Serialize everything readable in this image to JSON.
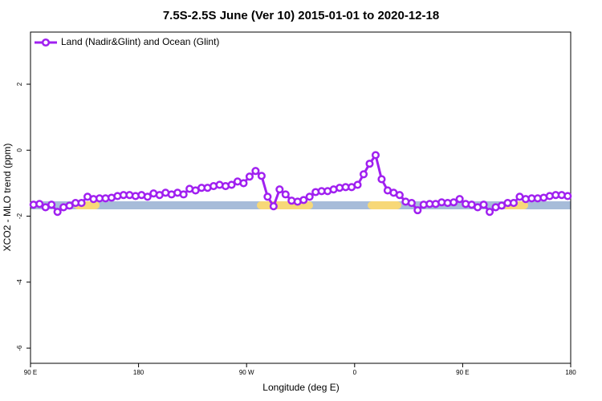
{
  "chart_data": {
    "type": "line",
    "title": "7.5S-2.5S June (Ver 10)   2015-01-01 to 2020-12-18",
    "xlabel": "Longitude (deg E)",
    "ylabel": "XCO2 - MLO trend (ppm)",
    "xlim": [
      90,
      540
    ],
    "ylim": [
      -6.46,
      3.58
    ],
    "xticks": [
      {
        "value": 90,
        "label": "90 E"
      },
      180,
      {
        "value": 270,
        "label": "90 W"
      },
      {
        "value": 360,
        "label": "0"
      },
      {
        "value": 450,
        "label": "90 E"
      },
      {
        "value": 540,
        "label": "180"
      }
    ],
    "yticks": [
      -6,
      -4,
      -2,
      0,
      2
    ],
    "legend": "top-left",
    "x": [
      92.5,
      97.5,
      102.5,
      107.5,
      112.5,
      117.5,
      122.5,
      127.5,
      132.5,
      137.5,
      142.5,
      147.5,
      152.5,
      157.5,
      162.5,
      167.5,
      172.5,
      177.5,
      182.5,
      187.5,
      192.5,
      197.5,
      202.5,
      207.5,
      212.5,
      217.5,
      222.5,
      227.5,
      232.5,
      237.5,
      242.5,
      247.5,
      252.5,
      257.5,
      262.5,
      267.5,
      272.5,
      277.5,
      282.5,
      287.5,
      292.5,
      297.5,
      302.5,
      307.5,
      312.5,
      317.5,
      322.5,
      327.5,
      332.5,
      337.5,
      342.5,
      347.5,
      352.5,
      357.5,
      362.5,
      367.5,
      372.5,
      377.5,
      382.5,
      387.5,
      392.5,
      397.5,
      402.5,
      407.5,
      412.5,
      417.5,
      422.5,
      427.5,
      432.5,
      437.5,
      442.5,
      447.5,
      452.5,
      457.5,
      462.5,
      467.5,
      472.5,
      477.5,
      482.5,
      487.5,
      492.5,
      497.5,
      502.5,
      507.5,
      512.5,
      517.5,
      522.5,
      527.5,
      532.5,
      537.5
    ],
    "series": [
      {
        "name": "Land (Nadir&Glint) and Ocean (Glint)",
        "color": "#a020f0",
        "values": [
          -1.65,
          -1.63,
          -1.73,
          -1.65,
          -1.87,
          -1.73,
          -1.68,
          -1.6,
          -1.6,
          -1.41,
          -1.48,
          -1.46,
          -1.46,
          -1.44,
          -1.39,
          -1.36,
          -1.36,
          -1.39,
          -1.36,
          -1.41,
          -1.31,
          -1.36,
          -1.29,
          -1.34,
          -1.29,
          -1.34,
          -1.17,
          -1.22,
          -1.14,
          -1.14,
          -1.09,
          -1.05,
          -1.09,
          -1.05,
          -0.95,
          -1.0,
          -0.8,
          -0.63,
          -0.78,
          -1.41,
          -1.7,
          -1.19,
          -1.34,
          -1.53,
          -1.56,
          -1.51,
          -1.41,
          -1.27,
          -1.24,
          -1.24,
          -1.19,
          -1.14,
          -1.12,
          -1.12,
          -1.05,
          -0.73,
          -0.41,
          -0.15,
          -0.88,
          -1.22,
          -1.29,
          -1.36,
          -1.56,
          -1.6,
          -1.82,
          -1.65,
          -1.63,
          -1.63,
          -1.58,
          -1.6,
          -1.58,
          -1.48,
          -1.63,
          -1.65,
          -1.73,
          -1.65,
          -1.87,
          -1.73,
          -1.68,
          -1.6,
          -1.6,
          -1.41,
          -1.48,
          -1.46,
          -1.46,
          -1.44,
          -1.39,
          -1.36,
          -1.36,
          -1.39
        ]
      }
    ]
  }
}
